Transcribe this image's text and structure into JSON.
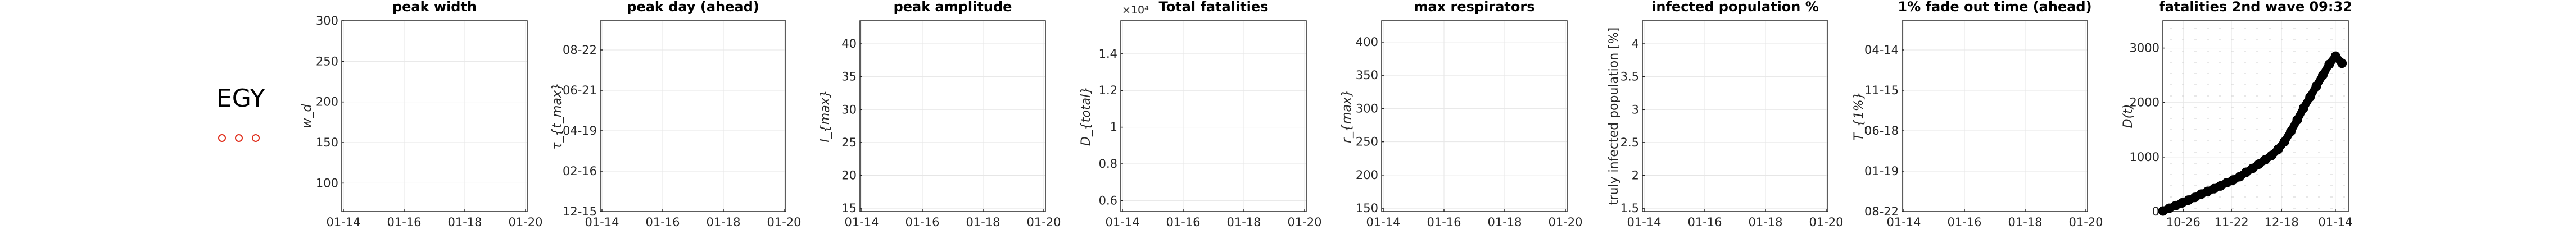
{
  "country": "EGY",
  "chart_data": [
    {
      "type": "line",
      "title": "peak width",
      "ylabel": "w_d",
      "x_ticks": [
        "01-14",
        "01-16",
        "01-18",
        "01-20"
      ],
      "y_ticks": [
        100,
        150,
        200,
        250,
        300
      ],
      "ylim": [
        65,
        300
      ],
      "series": []
    },
    {
      "type": "line",
      "title": "peak day (ahead)",
      "ylabel": "τ_{t_max}",
      "x_ticks": [
        "01-14",
        "01-16",
        "01-18",
        "01-20"
      ],
      "y_ticks": [
        "08-22",
        "06-21",
        "04-19",
        "02-16",
        "12-15"
      ],
      "series": []
    },
    {
      "type": "line",
      "title": "peak amplitude",
      "ylabel": "I_{max}",
      "x_ticks": [
        "01-14",
        "01-16",
        "01-18",
        "01-20"
      ],
      "y_ticks": [
        40,
        35,
        30,
        25,
        20,
        15
      ],
      "ylim": [
        14.5,
        43.5
      ],
      "series": []
    },
    {
      "type": "line",
      "title": "Total fatalities",
      "ylabel": "D_{total}",
      "exponent": "×10⁴",
      "x_ticks": [
        "01-14",
        "01-16",
        "01-18",
        "01-20"
      ],
      "y_ticks": [
        1.4,
        1.2,
        1,
        0.8,
        0.6
      ],
      "ylim": [
        0.54,
        1.58
      ],
      "series": []
    },
    {
      "type": "line",
      "title": "max respirators",
      "ylabel": "r_{max}",
      "x_ticks": [
        "01-14",
        "01-16",
        "01-18",
        "01-20"
      ],
      "y_ticks": [
        400,
        350,
        300,
        250,
        200,
        150
      ],
      "ylim": [
        145,
        432
      ],
      "series": []
    },
    {
      "type": "line",
      "title": "infected population %",
      "ylabel": "truly infected population [%]",
      "x_ticks": [
        "01-14",
        "01-16",
        "01-18",
        "01-20"
      ],
      "y_ticks": [
        4,
        3.5,
        3,
        2.5,
        2,
        1.5
      ],
      "ylim": [
        1.45,
        4.35
      ],
      "series": []
    },
    {
      "type": "line",
      "title": "1% fade out time (ahead)",
      "ylabel": "T_{1%}",
      "x_ticks": [
        "01-14",
        "01-16",
        "01-18",
        "01-20"
      ],
      "y_ticks": [
        "04-14",
        "11-15",
        "06-18",
        "01-19",
        "08-22"
      ],
      "series": []
    },
    {
      "type": "scatter",
      "title": "fatalities 2nd wave 09:32",
      "ylabel": "D(t)",
      "x_ticks": [
        "10-26",
        "11-22",
        "12-18",
        "01-14"
      ],
      "y_ticks": [
        0,
        1000,
        2000,
        3000
      ],
      "xlim": [
        0,
        116
      ],
      "ylim": [
        0,
        3500
      ],
      "series": [
        {
          "x": [
            0,
            4,
            8,
            12,
            16,
            20,
            24,
            28,
            32,
            36,
            40,
            44,
            48,
            52,
            56,
            60,
            64,
            68,
            72,
            76,
            80,
            84,
            88,
            92,
            96,
            100,
            104,
            108,
            112
          ],
          "y": [
            10,
            60,
            110,
            160,
            210,
            260,
            320,
            370,
            420,
            470,
            530,
            580,
            640,
            720,
            790,
            870,
            950,
            1030,
            1140,
            1280,
            1470,
            1680,
            1900,
            2100,
            2300,
            2500,
            2700,
            2850,
            2720
          ]
        }
      ]
    }
  ]
}
